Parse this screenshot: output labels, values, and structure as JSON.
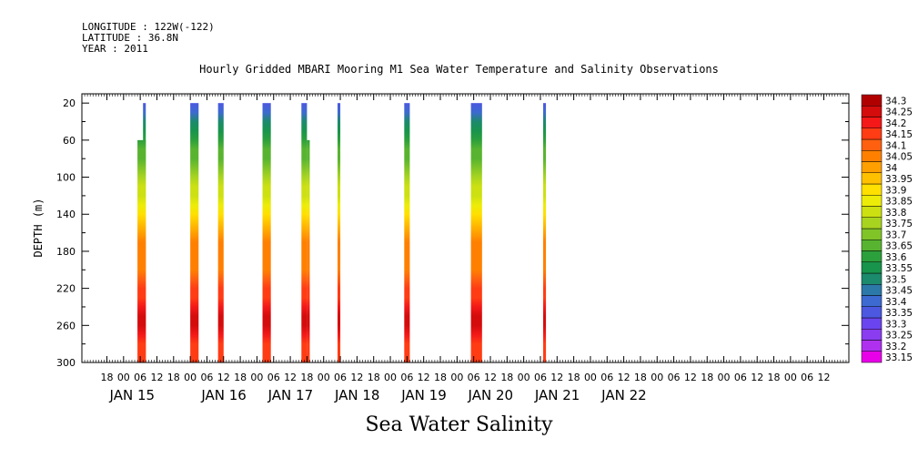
{
  "header": {
    "longitude": "LONGITUDE : 122W(-122)",
    "latitude": "LATITUDE : 36.8N",
    "year": "YEAR : 2011"
  },
  "title": "Hourly Gridded MBARI Mooring M1 Sea Water Temperature and Salinity Observations",
  "footer": "Sea Water Salinity",
  "chart_data": {
    "type": "heatmap",
    "title": "Hourly Gridded MBARI Mooring M1 Sea Water Temperature and Salinity Observations",
    "xlabel": "",
    "ylabel": "DEPTH (m)",
    "y_axis": {
      "range": [
        300,
        10
      ],
      "inverted": true,
      "ticks": [
        20,
        60,
        100,
        140,
        180,
        220,
        260,
        300
      ]
    },
    "x_axis": {
      "unit": "hours since JAN 15 00:00",
      "range": [
        -15,
        261
      ],
      "hour_ticks": [
        {
          "t": -6,
          "label": "18"
        },
        {
          "t": 0,
          "label": "00"
        },
        {
          "t": 6,
          "label": "06"
        },
        {
          "t": 12,
          "label": "12"
        },
        {
          "t": 18,
          "label": "18"
        },
        {
          "t": 24,
          "label": "00"
        },
        {
          "t": 30,
          "label": "06"
        },
        {
          "t": 36,
          "label": "12"
        },
        {
          "t": 42,
          "label": "18"
        },
        {
          "t": 48,
          "label": "00"
        },
        {
          "t": 54,
          "label": "06"
        },
        {
          "t": 60,
          "label": "12"
        },
        {
          "t": 66,
          "label": "18"
        },
        {
          "t": 72,
          "label": "00"
        },
        {
          "t": 78,
          "label": "06"
        },
        {
          "t": 84,
          "label": "12"
        },
        {
          "t": 90,
          "label": "18"
        },
        {
          "t": 96,
          "label": "00"
        },
        {
          "t": 102,
          "label": "06"
        },
        {
          "t": 108,
          "label": "12"
        },
        {
          "t": 114,
          "label": "18"
        },
        {
          "t": 120,
          "label": "00"
        },
        {
          "t": 126,
          "label": "06"
        },
        {
          "t": 132,
          "label": "12"
        },
        {
          "t": 138,
          "label": "18"
        },
        {
          "t": 144,
          "label": "00"
        },
        {
          "t": 150,
          "label": "06"
        },
        {
          "t": 156,
          "label": "12"
        },
        {
          "t": 162,
          "label": "18"
        },
        {
          "t": 168,
          "label": "00"
        },
        {
          "t": 174,
          "label": "06"
        },
        {
          "t": 180,
          "label": "12"
        },
        {
          "t": 186,
          "label": "18"
        },
        {
          "t": 192,
          "label": "00"
        },
        {
          "t": 198,
          "label": "06"
        },
        {
          "t": 204,
          "label": "12"
        },
        {
          "t": 210,
          "label": "18"
        },
        {
          "t": 216,
          "label": "00"
        },
        {
          "t": 222,
          "label": "06"
        },
        {
          "t": 228,
          "label": "12"
        },
        {
          "t": 234,
          "label": "18"
        },
        {
          "t": 240,
          "label": "00"
        },
        {
          "t": 246,
          "label": "06"
        },
        {
          "t": 252,
          "label": "12"
        }
      ],
      "day_labels": [
        {
          "t": -5,
          "label": "JAN 15"
        },
        {
          "t": 28,
          "label": "JAN 16"
        },
        {
          "t": 52,
          "label": "JAN 17"
        },
        {
          "t": 76,
          "label": "JAN 18"
        },
        {
          "t": 100,
          "label": "JAN 19"
        },
        {
          "t": 124,
          "label": "JAN 20"
        },
        {
          "t": 148,
          "label": "JAN 21"
        },
        {
          "t": 172,
          "label": "JAN 22"
        }
      ]
    },
    "colorbar": {
      "levels": [
        33.15,
        33.2,
        33.25,
        33.3,
        33.35,
        33.4,
        33.45,
        33.5,
        33.55,
        33.6,
        33.65,
        33.7,
        33.75,
        33.8,
        33.85,
        33.9,
        33.95,
        34,
        34.05,
        34.1,
        34.15,
        34.2,
        34.25,
        34.3
      ],
      "labels": [
        "33.15",
        "33.2",
        "33.25",
        "33.3",
        "33.35",
        "33.4",
        "33.45",
        "33.5",
        "33.55",
        "33.6",
        "33.65",
        "33.7",
        "33.75",
        "33.8",
        "33.85",
        "33.9",
        "33.95",
        "34",
        "34.05",
        "34.1",
        "34.15",
        "34.2",
        "34.25",
        "34.3"
      ],
      "colors": [
        "#e800e8",
        "#b030f0",
        "#8a3cf0",
        "#6a44ee",
        "#4c58e0",
        "#3c6ad0",
        "#2c78a8",
        "#1c8a6c",
        "#18944c",
        "#2ca03c",
        "#58b430",
        "#80c428",
        "#a8d420",
        "#cce012",
        "#ecec08",
        "#ffe000",
        "#ffc000",
        "#ffa000",
        "#ff8000",
        "#ff6010",
        "#ff3c14",
        "#f41818",
        "#d40c0c",
        "#b00000"
      ]
    },
    "profile_depths": [
      20,
      30,
      40,
      50,
      60,
      70,
      80,
      90,
      100,
      110,
      120,
      130,
      140,
      150,
      160,
      170,
      180,
      190,
      200,
      210,
      220,
      230,
      240,
      250,
      260,
      270,
      280,
      290,
      300
    ],
    "profile_salinity": [
      33.37,
      33.44,
      33.52,
      33.58,
      33.62,
      33.66,
      33.69,
      33.72,
      33.76,
      33.8,
      33.84,
      33.88,
      33.92,
      33.96,
      34.02,
      34.05,
      34.07,
      34.07,
      34.07,
      34.12,
      34.17,
      34.18,
      34.22,
      34.25,
      34.25,
      34.23,
      34.18,
      34.17,
      34.17
    ],
    "observation_blocks": [
      {
        "t_start": 5,
        "t_end": 8,
        "top_depth": 60,
        "shifted_top": {
          "t_start": 7,
          "t_end": 8,
          "top_depth": 20
        }
      },
      {
        "t_start": 24,
        "t_end": 27,
        "top_depth": 20
      },
      {
        "t_start": 34,
        "t_end": 36,
        "top_depth": 20
      },
      {
        "t_start": 50,
        "t_end": 53,
        "top_depth": 20
      },
      {
        "t_start": 64,
        "t_end": 66,
        "top_depth": 20,
        "shifted_top": {
          "t_start": 66,
          "t_end": 67,
          "top_depth": 60
        }
      },
      {
        "t_start": 77,
        "t_end": 78,
        "top_depth": 20
      },
      {
        "t_start": 101,
        "t_end": 103,
        "top_depth": 20
      },
      {
        "t_start": 125,
        "t_end": 129,
        "top_depth": 20
      },
      {
        "t_start": 151,
        "t_end": 152,
        "top_depth": 20
      }
    ]
  }
}
